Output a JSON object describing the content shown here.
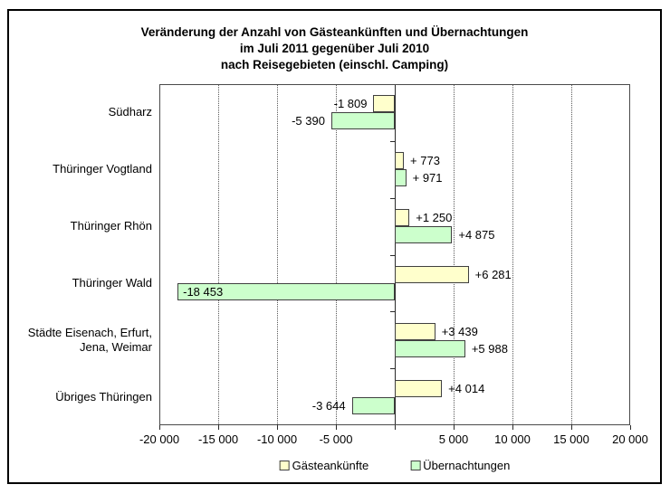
{
  "title": {
    "line1": "Veränderung der Anzahl von Gästeankünften und Übernachtungen",
    "line2": "im Juli 2011 gegenüber Juli 2010",
    "line3": "nach Reisegebieten (einschl. Camping)"
  },
  "legend": {
    "items": [
      {
        "label": "Gästeankünfte",
        "color": "#FFFFCC"
      },
      {
        "label": "Übernachtungen",
        "color": "#CCFFCC"
      }
    ]
  },
  "chart_data": {
    "type": "bar",
    "orientation": "horizontal",
    "title": "Veränderung der Anzahl von Gästeankünften und Übernachtungen im Juli 2011 gegenüber Juli 2010 nach Reisegebieten (einschl. Camping)",
    "categories": [
      "Südharz",
      "Thüringer Vogtland",
      "Thüringer Rhön",
      "Thüringer Wald",
      "Städte Eisenach, Erfurt, Jena, Weimar",
      "Übriges Thüringen"
    ],
    "category_display_lines": [
      [
        "Südharz"
      ],
      [
        "Thüringer Vogtland"
      ],
      [
        "Thüringer Rhön"
      ],
      [
        "Thüringer Wald"
      ],
      [
        "Städte Eisenach, Erfurt,",
        "Jena, Weimar"
      ],
      [
        "Übriges Thüringen"
      ]
    ],
    "series": [
      {
        "name": "Gästeankünfte",
        "color": "#FFFFCC",
        "values": [
          -1809,
          773,
          1250,
          6281,
          3439,
          4014
        ],
        "value_labels": [
          "-1 809",
          "+ 773",
          "+1 250",
          "+6 281",
          "+3 439",
          "+4 014"
        ]
      },
      {
        "name": "Übernachtungen",
        "color": "#CCFFCC",
        "values": [
          -5390,
          971,
          4875,
          -18453,
          5988,
          -3644
        ],
        "value_labels": [
          "-5 390",
          "+ 971",
          "+4 875",
          "-18 453",
          "+5 988",
          "-3 644"
        ]
      }
    ],
    "xlim": [
      -20000,
      20000
    ],
    "x_tick_interval": 5000,
    "x_ticks": [
      {
        "value": -20000,
        "label": "-20 000"
      },
      {
        "value": -15000,
        "label": "-15 000"
      },
      {
        "value": -10000,
        "label": "-10 000"
      },
      {
        "value": -5000,
        "label": "-5 000"
      },
      {
        "value": 0,
        "label": ""
      },
      {
        "value": 5000,
        "label": "5 000"
      },
      {
        "value": 10000,
        "label": "10 000"
      },
      {
        "value": 15000,
        "label": "15 000"
      },
      {
        "value": 20000,
        "label": "20 000"
      }
    ],
    "grid": "vertical dotted",
    "legend_position": "bottom",
    "bar_border_color": "#404040",
    "colors": {
      "gaesteankuenfte": "#FFFFCC",
      "uebernachtungen": "#CCFFCC"
    }
  }
}
